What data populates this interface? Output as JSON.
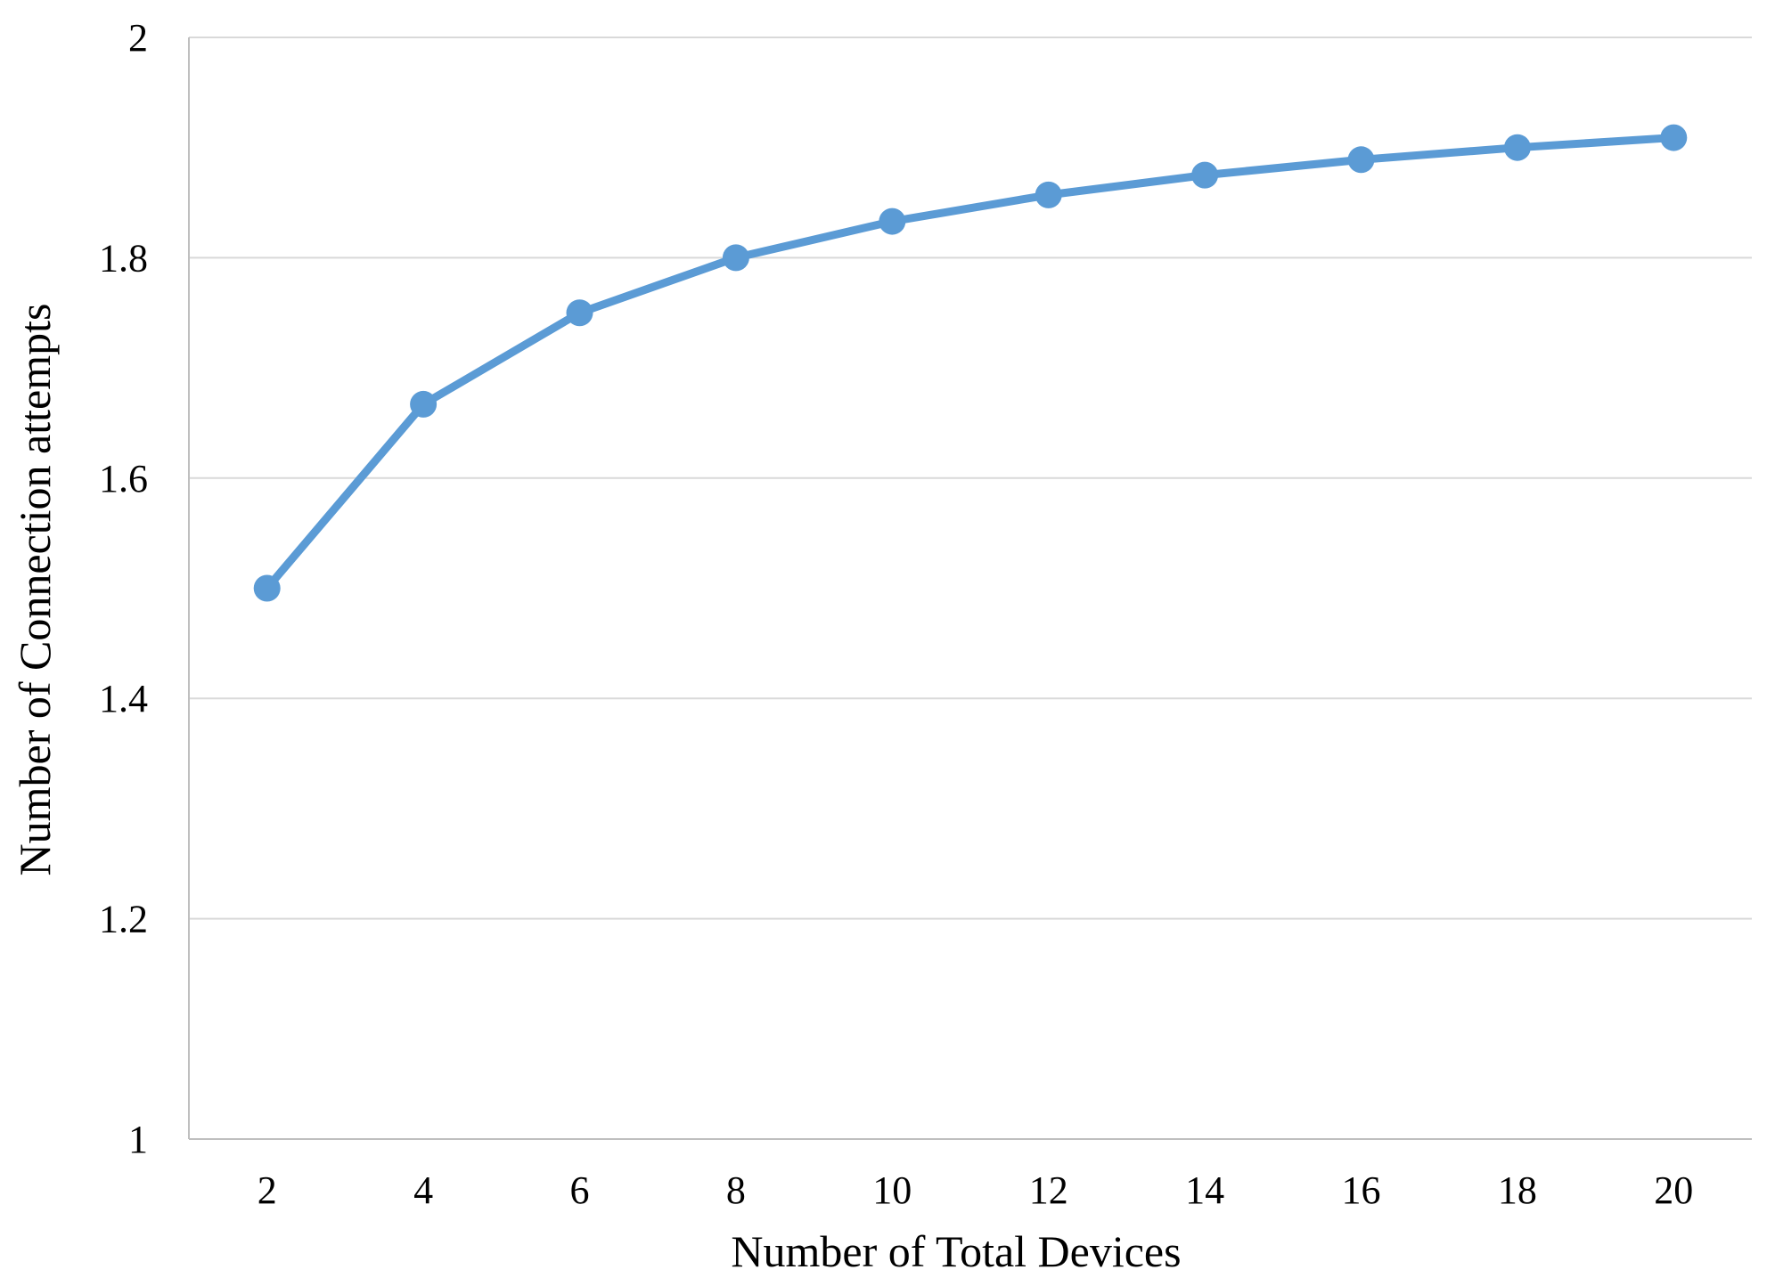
{
  "chart_data": {
    "type": "line",
    "title": "",
    "xlabel": "Number of Total Devices",
    "ylabel": "Number of Connection attempts",
    "categories": [
      "2",
      "4",
      "6",
      "8",
      "10",
      "12",
      "14",
      "16",
      "18",
      "20"
    ],
    "y_ticks": [
      "1",
      "1.2",
      "1.4",
      "1.6",
      "1.8",
      "2"
    ],
    "ylim": [
      1,
      2
    ],
    "grid": true,
    "legend": "none",
    "series": [
      {
        "color": "#5b9bd5",
        "values": [
          1.5,
          1.667,
          1.75,
          1.8,
          1.833,
          1.857,
          1.875,
          1.889,
          1.9,
          1.909
        ]
      }
    ],
    "colors": {
      "grid": "#d9d9d9",
      "axis": "#bfbfbf"
    }
  }
}
